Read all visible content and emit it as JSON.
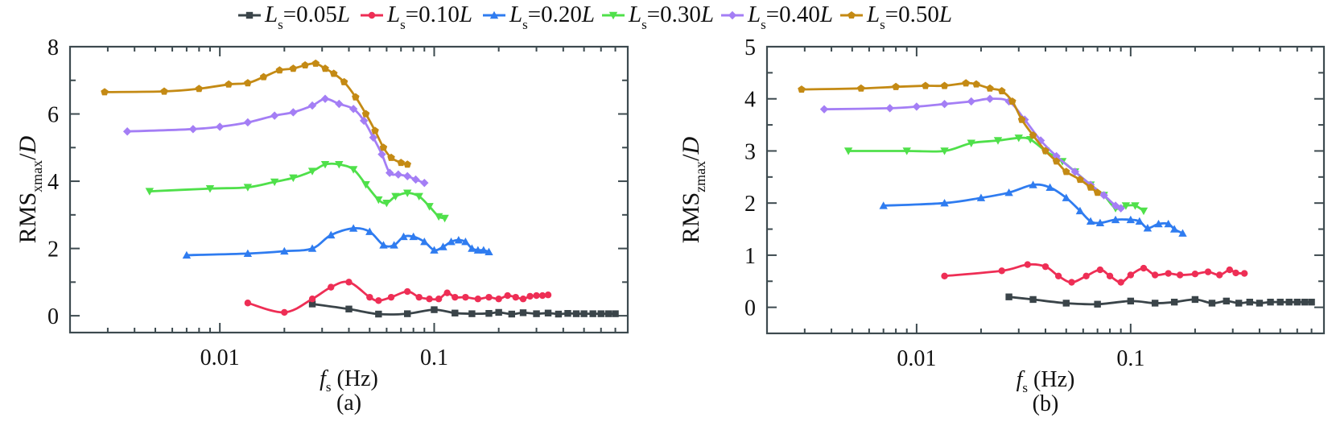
{
  "legend": [
    {
      "name": "Ls=0.05L",
      "main": "L",
      "sub": "s",
      "rest": "=0.05",
      "tail": "L",
      "color": "#3a4449",
      "marker": "square"
    },
    {
      "name": "Ls=0.10L",
      "main": "L",
      "sub": "s",
      "rest": "=0.10",
      "tail": "L",
      "color": "#ee2e55",
      "marker": "circle"
    },
    {
      "name": "Ls=0.20L",
      "main": "L",
      "sub": "s",
      "rest": "=0.20",
      "tail": "L",
      "color": "#2f7cf0",
      "marker": "triangle-up"
    },
    {
      "name": "Ls=0.30L",
      "main": "L",
      "sub": "s",
      "rest": "=0.30",
      "tail": "L",
      "color": "#4fe04a",
      "marker": "triangle-down"
    },
    {
      "name": "Ls=0.40L",
      "main": "L",
      "sub": "s",
      "rest": "=0.40",
      "tail": "L",
      "color": "#a47ef5",
      "marker": "diamond"
    },
    {
      "name": "Ls=0.50L",
      "main": "L",
      "sub": "s",
      "rest": "=0.50",
      "tail": "L",
      "color": "#c48a14",
      "marker": "pentagon"
    }
  ],
  "chart_data": [
    {
      "type": "line",
      "panel_label": "(a)",
      "xlabel": {
        "main": "f",
        "sub": "s",
        "rest": " (Hz)"
      },
      "ylabel": {
        "main": "RMS",
        "sub": "xmax",
        "rest": "/D"
      },
      "xscale": "log",
      "xlim": [
        0.002,
        0.8
      ],
      "ylim": [
        -0.5,
        8
      ],
      "xticks": [
        {
          "value": 0.01,
          "label": "0.01"
        },
        {
          "value": 0.1,
          "label": "0.1"
        }
      ],
      "yticks": [
        {
          "value": 0,
          "label": "0"
        },
        {
          "value": 2,
          "label": "2"
        },
        {
          "value": 4,
          "label": "4"
        },
        {
          "value": 6,
          "label": "6"
        },
        {
          "value": 8,
          "label": "8"
        }
      ],
      "grid": false,
      "series": [
        {
          "name": "Ls=0.05L",
          "points": [
            [
              0.027,
              0.35
            ],
            [
              0.04,
              0.2
            ],
            [
              0.055,
              0.05
            ],
            [
              0.075,
              0.06
            ],
            [
              0.1,
              0.18
            ],
            [
              0.125,
              0.08
            ],
            [
              0.15,
              0.06
            ],
            [
              0.18,
              0.07
            ],
            [
              0.2,
              0.1
            ],
            [
              0.23,
              0.05
            ],
            [
              0.26,
              0.09
            ],
            [
              0.3,
              0.06
            ],
            [
              0.34,
              0.08
            ],
            [
              0.38,
              0.05
            ],
            [
              0.42,
              0.07
            ],
            [
              0.46,
              0.06
            ],
            [
              0.5,
              0.06
            ],
            [
              0.55,
              0.06
            ],
            [
              0.6,
              0.06
            ],
            [
              0.65,
              0.06
            ],
            [
              0.7,
              0.06
            ]
          ]
        },
        {
          "name": "Ls=0.10L",
          "points": [
            [
              0.0135,
              0.38
            ],
            [
              0.02,
              0.1
            ],
            [
              0.027,
              0.5
            ],
            [
              0.033,
              0.85
            ],
            [
              0.04,
              1.0
            ],
            [
              0.05,
              0.55
            ],
            [
              0.055,
              0.45
            ],
            [
              0.063,
              0.55
            ],
            [
              0.075,
              0.72
            ],
            [
              0.085,
              0.55
            ],
            [
              0.095,
              0.5
            ],
            [
              0.105,
              0.5
            ],
            [
              0.115,
              0.68
            ],
            [
              0.125,
              0.55
            ],
            [
              0.14,
              0.55
            ],
            [
              0.16,
              0.5
            ],
            [
              0.18,
              0.55
            ],
            [
              0.2,
              0.5
            ],
            [
              0.22,
              0.6
            ],
            [
              0.24,
              0.55
            ],
            [
              0.26,
              0.5
            ],
            [
              0.28,
              0.58
            ],
            [
              0.3,
              0.6
            ],
            [
              0.32,
              0.6
            ],
            [
              0.34,
              0.62
            ]
          ]
        },
        {
          "name": "Ls=0.20L",
          "points": [
            [
              0.007,
              1.8
            ],
            [
              0.0135,
              1.85
            ],
            [
              0.02,
              1.92
            ],
            [
              0.027,
              2.0
            ],
            [
              0.033,
              2.4
            ],
            [
              0.042,
              2.6
            ],
            [
              0.05,
              2.5
            ],
            [
              0.058,
              2.1
            ],
            [
              0.065,
              2.1
            ],
            [
              0.072,
              2.35
            ],
            [
              0.08,
              2.35
            ],
            [
              0.09,
              2.2
            ],
            [
              0.1,
              1.95
            ],
            [
              0.11,
              2.05
            ],
            [
              0.12,
              2.2
            ],
            [
              0.13,
              2.25
            ],
            [
              0.14,
              2.2
            ],
            [
              0.15,
              2.0
            ],
            [
              0.16,
              1.95
            ],
            [
              0.17,
              1.95
            ],
            [
              0.18,
              1.9
            ]
          ]
        },
        {
          "name": "Ls=0.30L",
          "points": [
            [
              0.0047,
              3.7
            ],
            [
              0.009,
              3.78
            ],
            [
              0.0135,
              3.82
            ],
            [
              0.018,
              3.98
            ],
            [
              0.022,
              4.1
            ],
            [
              0.027,
              4.3
            ],
            [
              0.031,
              4.5
            ],
            [
              0.036,
              4.5
            ],
            [
              0.042,
              4.35
            ],
            [
              0.048,
              3.9
            ],
            [
              0.055,
              3.45
            ],
            [
              0.06,
              3.35
            ],
            [
              0.066,
              3.55
            ],
            [
              0.075,
              3.65
            ],
            [
              0.085,
              3.55
            ],
            [
              0.095,
              3.25
            ],
            [
              0.105,
              2.95
            ],
            [
              0.112,
              2.9
            ]
          ]
        },
        {
          "name": "Ls=0.40L",
          "points": [
            [
              0.0037,
              5.48
            ],
            [
              0.0075,
              5.55
            ],
            [
              0.01,
              5.62
            ],
            [
              0.0135,
              5.75
            ],
            [
              0.018,
              5.95
            ],
            [
              0.022,
              6.05
            ],
            [
              0.027,
              6.25
            ],
            [
              0.031,
              6.45
            ],
            [
              0.036,
              6.3
            ],
            [
              0.042,
              6.15
            ],
            [
              0.047,
              5.8
            ],
            [
              0.052,
              5.3
            ],
            [
              0.057,
              4.8
            ],
            [
              0.062,
              4.25
            ],
            [
              0.068,
              4.2
            ],
            [
              0.075,
              4.15
            ],
            [
              0.082,
              4.05
            ],
            [
              0.09,
              3.95
            ]
          ]
        },
        {
          "name": "Ls=0.50L",
          "points": [
            [
              0.0029,
              6.65
            ],
            [
              0.0055,
              6.67
            ],
            [
              0.008,
              6.75
            ],
            [
              0.011,
              6.88
            ],
            [
              0.0135,
              6.92
            ],
            [
              0.016,
              7.1
            ],
            [
              0.019,
              7.3
            ],
            [
              0.022,
              7.35
            ],
            [
              0.025,
              7.45
            ],
            [
              0.028,
              7.5
            ],
            [
              0.031,
              7.35
            ],
            [
              0.034,
              7.2
            ],
            [
              0.038,
              6.95
            ],
            [
              0.043,
              6.5
            ],
            [
              0.048,
              6.0
            ],
            [
              0.053,
              5.5
            ],
            [
              0.058,
              5.0
            ],
            [
              0.063,
              4.7
            ],
            [
              0.07,
              4.55
            ],
            [
              0.075,
              4.5
            ]
          ]
        }
      ]
    },
    {
      "type": "line",
      "panel_label": "(b)",
      "xlabel": {
        "main": "f",
        "sub": "s",
        "rest": " (Hz)"
      },
      "ylabel": {
        "main": "RMS",
        "sub": "zmax",
        "rest": "/D"
      },
      "xscale": "log",
      "xlim": [
        0.002,
        0.8
      ],
      "ylim": [
        -0.5,
        5
      ],
      "xticks": [
        {
          "value": 0.01,
          "label": "0.01"
        },
        {
          "value": 0.1,
          "label": "0.1"
        }
      ],
      "yticks": [
        {
          "value": 0,
          "label": "0"
        },
        {
          "value": 1,
          "label": "1"
        },
        {
          "value": 2,
          "label": "2"
        },
        {
          "value": 3,
          "label": "3"
        },
        {
          "value": 4,
          "label": "4"
        },
        {
          "value": 5,
          "label": "5"
        }
      ],
      "grid": false,
      "series": [
        {
          "name": "Ls=0.05L",
          "points": [
            [
              0.027,
              0.2
            ],
            [
              0.035,
              0.15
            ],
            [
              0.05,
              0.08
            ],
            [
              0.07,
              0.06
            ],
            [
              0.1,
              0.12
            ],
            [
              0.13,
              0.08
            ],
            [
              0.16,
              0.1
            ],
            [
              0.2,
              0.15
            ],
            [
              0.24,
              0.08
            ],
            [
              0.28,
              0.12
            ],
            [
              0.32,
              0.08
            ],
            [
              0.36,
              0.1
            ],
            [
              0.4,
              0.08
            ],
            [
              0.45,
              0.1
            ],
            [
              0.5,
              0.1
            ],
            [
              0.55,
              0.1
            ],
            [
              0.6,
              0.1
            ],
            [
              0.65,
              0.1
            ],
            [
              0.7,
              0.1
            ]
          ]
        },
        {
          "name": "Ls=0.10L",
          "points": [
            [
              0.0135,
              0.6
            ],
            [
              0.025,
              0.7
            ],
            [
              0.033,
              0.82
            ],
            [
              0.04,
              0.78
            ],
            [
              0.046,
              0.6
            ],
            [
              0.053,
              0.48
            ],
            [
              0.062,
              0.6
            ],
            [
              0.072,
              0.72
            ],
            [
              0.08,
              0.6
            ],
            [
              0.09,
              0.48
            ],
            [
              0.1,
              0.62
            ],
            [
              0.115,
              0.75
            ],
            [
              0.13,
              0.62
            ],
            [
              0.15,
              0.65
            ],
            [
              0.17,
              0.62
            ],
            [
              0.2,
              0.64
            ],
            [
              0.23,
              0.68
            ],
            [
              0.26,
              0.62
            ],
            [
              0.29,
              0.72
            ],
            [
              0.31,
              0.66
            ],
            [
              0.34,
              0.65
            ]
          ]
        },
        {
          "name": "Ls=0.20L",
          "points": [
            [
              0.007,
              1.95
            ],
            [
              0.0135,
              2.0
            ],
            [
              0.02,
              2.1
            ],
            [
              0.027,
              2.2
            ],
            [
              0.035,
              2.35
            ],
            [
              0.042,
              2.3
            ],
            [
              0.05,
              2.1
            ],
            [
              0.058,
              1.85
            ],
            [
              0.065,
              1.65
            ],
            [
              0.072,
              1.62
            ],
            [
              0.085,
              1.68
            ],
            [
              0.1,
              1.68
            ],
            [
              0.11,
              1.65
            ],
            [
              0.12,
              1.52
            ],
            [
              0.135,
              1.6
            ],
            [
              0.15,
              1.6
            ],
            [
              0.16,
              1.5
            ],
            [
              0.175,
              1.42
            ]
          ]
        },
        {
          "name": "Ls=0.30L",
          "points": [
            [
              0.0048,
              3.0
            ],
            [
              0.009,
              3.0
            ],
            [
              0.0135,
              3.0
            ],
            [
              0.018,
              3.15
            ],
            [
              0.024,
              3.2
            ],
            [
              0.03,
              3.25
            ],
            [
              0.034,
              3.22
            ],
            [
              0.04,
              3.0
            ],
            [
              0.048,
              2.8
            ],
            [
              0.055,
              2.6
            ],
            [
              0.065,
              2.35
            ],
            [
              0.075,
              2.15
            ],
            [
              0.085,
              1.9
            ],
            [
              0.095,
              1.95
            ],
            [
              0.105,
              1.95
            ],
            [
              0.115,
              1.85
            ]
          ]
        },
        {
          "name": "Ls=0.40L",
          "points": [
            [
              0.0037,
              3.8
            ],
            [
              0.0075,
              3.82
            ],
            [
              0.01,
              3.85
            ],
            [
              0.0135,
              3.9
            ],
            [
              0.018,
              3.95
            ],
            [
              0.022,
              4.0
            ],
            [
              0.027,
              3.95
            ],
            [
              0.032,
              3.6
            ],
            [
              0.038,
              3.2
            ],
            [
              0.045,
              2.9
            ],
            [
              0.055,
              2.6
            ],
            [
              0.065,
              2.35
            ],
            [
              0.075,
              2.15
            ],
            [
              0.085,
              1.95
            ],
            [
              0.09,
              1.9
            ]
          ]
        },
        {
          "name": "Ls=0.50L",
          "points": [
            [
              0.0029,
              4.18
            ],
            [
              0.0055,
              4.2
            ],
            [
              0.008,
              4.23
            ],
            [
              0.011,
              4.25
            ],
            [
              0.0135,
              4.25
            ],
            [
              0.017,
              4.3
            ],
            [
              0.019,
              4.28
            ],
            [
              0.022,
              4.2
            ],
            [
              0.025,
              4.15
            ],
            [
              0.028,
              3.95
            ],
            [
              0.031,
              3.6
            ],
            [
              0.035,
              3.3
            ],
            [
              0.04,
              3.0
            ],
            [
              0.045,
              2.8
            ],
            [
              0.05,
              2.6
            ],
            [
              0.058,
              2.45
            ],
            [
              0.065,
              2.3
            ],
            [
              0.07,
              2.2
            ]
          ]
        }
      ]
    }
  ]
}
